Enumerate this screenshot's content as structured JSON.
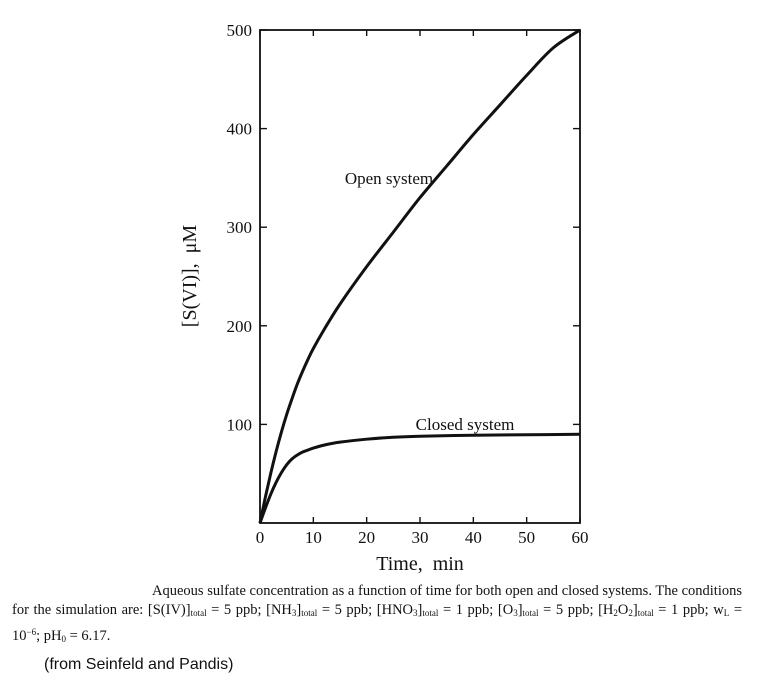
{
  "chart_data": {
    "type": "line",
    "title": "",
    "xlabel": "Time,  min",
    "ylabel": "[S(VI)],  μM",
    "xlim": [
      0,
      60
    ],
    "ylim": [
      0,
      500
    ],
    "x_ticks": [
      0,
      10,
      20,
      30,
      40,
      50,
      60
    ],
    "y_ticks": [
      100,
      200,
      300,
      400,
      500
    ],
    "x_tick_labels": [
      "0",
      "10",
      "20",
      "30",
      "40",
      "50",
      "60"
    ],
    "y_tick_labels": [
      "100",
      "200",
      "300",
      "400",
      "500"
    ],
    "grid": false,
    "legend": "none",
    "series": [
      {
        "name": "Open system",
        "x": [
          0,
          1,
          2,
          3,
          4,
          5,
          6,
          7,
          8,
          9,
          10,
          12,
          15,
          20,
          25,
          30,
          35,
          40,
          45,
          50,
          55,
          60
        ],
        "y": [
          0,
          26,
          50,
          72,
          92,
          110,
          126,
          141,
          154,
          166,
          177,
          196,
          222,
          260,
          295,
          330,
          362,
          394,
          424,
          454,
          482,
          500
        ]
      },
      {
        "name": "Closed system",
        "x": [
          0,
          1,
          2,
          3,
          4,
          5,
          6,
          7,
          8,
          9,
          10,
          12,
          15,
          20,
          25,
          30,
          40,
          50,
          60
        ],
        "y": [
          0,
          15,
          29,
          41,
          51,
          59,
          65,
          69,
          72,
          74,
          76,
          79,
          82,
          85,
          87,
          88,
          89,
          89.5,
          90
        ]
      }
    ]
  },
  "caption": {
    "text": "Aqueous sulfate concentration as a function of time for both open and closed systems. The conditions for the simulation are: [S(IV)]total = 5 ppb; [NH3]total = 5 ppb; [HNO3]total = 1 ppb; [O3]total = 5 ppb; [H2O2]total = 1 ppb; wL = 10−6; pH0 = 6.17.",
    "p1": "Aqueous sulfate concentration as a function of time for both open and closed systems. The conditions for the simulation are: [S(IV)]",
    "s1": "total",
    "p2": " = 5 ppb; [NH",
    "d1": "3",
    "p3": "]",
    "s2": "total",
    "p4": " = 5 ppb; [HNO",
    "d2": "3",
    "p5": "]",
    "s3": "total",
    "p6": " = 1 ppb; [O",
    "d3": "3",
    "p7": "]",
    "s4": "total",
    "p8": " = 5 ppb; [H",
    "d4": "2",
    "p9": "O",
    "d5": "2",
    "p10": "]",
    "s5": "total",
    "p11": " = 1 ppb; w",
    "s6": "L",
    "p12": " = 10",
    "e1": "−6",
    "p13": "; pH",
    "s7": "0",
    "p14": " = 6.17."
  },
  "source": "(from Seinfeld and Pandis)",
  "colors": {
    "ink": "#111111",
    "background": "#ffffff"
  }
}
